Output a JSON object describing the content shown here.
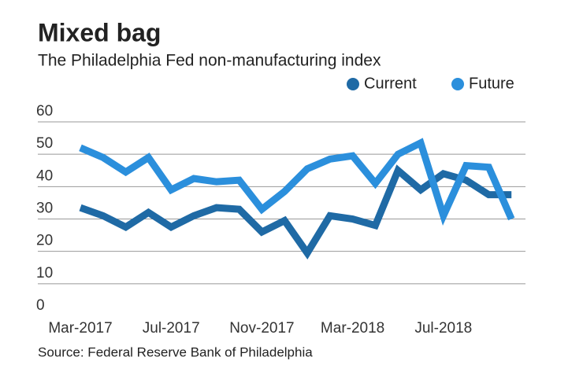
{
  "chart_data": {
    "type": "line",
    "title": "Mixed bag",
    "subtitle": "The Philadelphia Fed non-manufacturing index",
    "source": "Source: Federal Reserve Bank of Philadelphia",
    "categories": [
      "Mar-2017",
      null,
      null,
      null,
      "Jul-2017",
      null,
      null,
      null,
      "Nov-2017",
      null,
      null,
      null,
      "Mar-2018",
      null,
      null,
      null,
      "Jul-2018",
      null,
      null,
      null
    ],
    "series": [
      {
        "name": "Current",
        "color": "#1f6aa5",
        "values": [
          33.5,
          31,
          27.5,
          32,
          27.5,
          31,
          33.5,
          33,
          26,
          29.5,
          19.5,
          31,
          30,
          28,
          45,
          39,
          44,
          42,
          37.5,
          37.5
        ]
      },
      {
        "name": "Future",
        "color": "#2b8fdc",
        "values": [
          52,
          49,
          44.5,
          49,
          39,
          42.5,
          41.5,
          42,
          33,
          38.5,
          45.5,
          48.5,
          49.5,
          41,
          50,
          53.5,
          31,
          46.5,
          46,
          30
        ]
      }
    ],
    "ylim": [
      0,
      60
    ],
    "yticks": [
      0,
      10,
      20,
      30,
      40,
      50,
      60
    ],
    "grid": true,
    "legend": "top-right"
  }
}
